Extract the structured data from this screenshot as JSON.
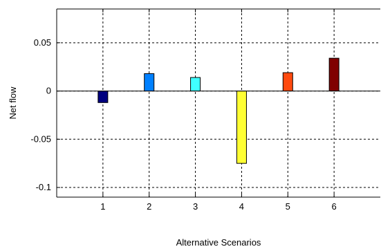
{
  "chart_data": {
    "type": "bar",
    "categories": [
      "1",
      "2",
      "3",
      "4",
      "5",
      "6"
    ],
    "values": [
      -0.012,
      0.018,
      0.014,
      -0.075,
      0.019,
      0.034
    ],
    "bar_colors": [
      "#00007f",
      "#0080ff",
      "#40ffff",
      "#ffff33",
      "#ff4a0f",
      "#800000"
    ],
    "xlabel": "Alternative Scenarios",
    "ylabel": "Net flow",
    "xlim": [
      0,
      7
    ],
    "ylim": [
      -0.11,
      0.085
    ],
    "yticks": [
      -0.1,
      -0.05,
      0,
      0.05
    ],
    "ytick_labels": [
      "-0.1",
      "-0.05",
      "0",
      "0.05"
    ],
    "xticks": [
      1,
      2,
      3,
      4,
      5,
      6
    ],
    "xtick_labels": [
      "1",
      "2",
      "3",
      "4",
      "5",
      "6"
    ],
    "grid": true
  }
}
